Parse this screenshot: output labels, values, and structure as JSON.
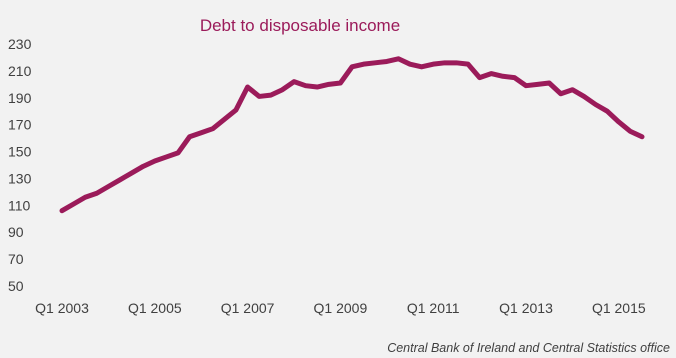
{
  "chart_data": {
    "type": "line",
    "title": "Debt to disposable income",
    "source": "Central Bank of Ireland and Central Statistics office",
    "xlabel": "",
    "ylabel": "",
    "ylim": [
      50,
      230
    ],
    "yticks": [
      50,
      70,
      90,
      110,
      130,
      150,
      170,
      190,
      210,
      230
    ],
    "xtick_labels": [
      "Q1 2003",
      "Q1 2005",
      "Q1 2007",
      "Q1 2009",
      "Q1 2011",
      "Q1 2013",
      "Q1 2015"
    ],
    "x": [
      "Q1 2003",
      "Q2 2003",
      "Q3 2003",
      "Q4 2003",
      "Q1 2004",
      "Q2 2004",
      "Q3 2004",
      "Q4 2004",
      "Q1 2005",
      "Q2 2005",
      "Q3 2005",
      "Q4 2005",
      "Q1 2006",
      "Q2 2006",
      "Q3 2006",
      "Q4 2006",
      "Q1 2007",
      "Q2 2007",
      "Q3 2007",
      "Q4 2007",
      "Q1 2008",
      "Q2 2008",
      "Q3 2008",
      "Q4 2008",
      "Q1 2009",
      "Q2 2009",
      "Q3 2009",
      "Q4 2009",
      "Q1 2010",
      "Q2 2010",
      "Q3 2010",
      "Q4 2010",
      "Q1 2011",
      "Q2 2011",
      "Q3 2011",
      "Q4 2011",
      "Q1 2012",
      "Q2 2012",
      "Q3 2012",
      "Q4 2012",
      "Q1 2013",
      "Q2 2013",
      "Q3 2013",
      "Q4 2013",
      "Q1 2014",
      "Q2 2014",
      "Q3 2014",
      "Q4 2014",
      "Q1 2015",
      "Q2 2015",
      "Q3 2015"
    ],
    "series": [
      {
        "name": "",
        "color": "#9b1b5a",
        "values": [
          106,
          111,
          116,
          119,
          124,
          129,
          134,
          139,
          143,
          146,
          149,
          161,
          164,
          167,
          174,
          181,
          198,
          191,
          192,
          196,
          202,
          199,
          198,
          200,
          201,
          213,
          215,
          216,
          217,
          219,
          215,
          213,
          215,
          216,
          216,
          215,
          205,
          208,
          206,
          205,
          199,
          200,
          201,
          193,
          196,
          191,
          185,
          180,
          172,
          165,
          161
        ]
      }
    ]
  }
}
